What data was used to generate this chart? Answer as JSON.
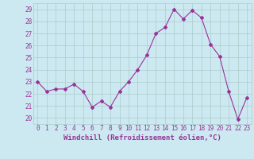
{
  "x": [
    0,
    1,
    2,
    3,
    4,
    5,
    6,
    7,
    8,
    9,
    10,
    11,
    12,
    13,
    14,
    15,
    16,
    17,
    18,
    19,
    20,
    21,
    22,
    23
  ],
  "y": [
    23.0,
    22.2,
    22.4,
    22.4,
    22.8,
    22.2,
    20.9,
    21.4,
    20.9,
    22.2,
    23.0,
    24.0,
    25.2,
    27.0,
    27.5,
    29.0,
    28.2,
    28.9,
    28.3,
    26.1,
    25.1,
    22.2,
    19.9,
    21.7
  ],
  "line_color": "#993399",
  "marker": "D",
  "marker_size": 2.0,
  "bg_color": "#cce8f0",
  "grid_color": "#aacccc",
  "xlabel": "Windchill (Refroidissement éolien,°C)",
  "ylim": [
    19.5,
    29.5
  ],
  "yticks": [
    20,
    21,
    22,
    23,
    24,
    25,
    26,
    27,
    28,
    29
  ],
  "xticks": [
    0,
    1,
    2,
    3,
    4,
    5,
    6,
    7,
    8,
    9,
    10,
    11,
    12,
    13,
    14,
    15,
    16,
    17,
    18,
    19,
    20,
    21,
    22,
    23
  ],
  "tick_color": "#993399",
  "label_color": "#993399",
  "tick_fontsize": 5.5,
  "xlabel_fontsize": 6.5
}
